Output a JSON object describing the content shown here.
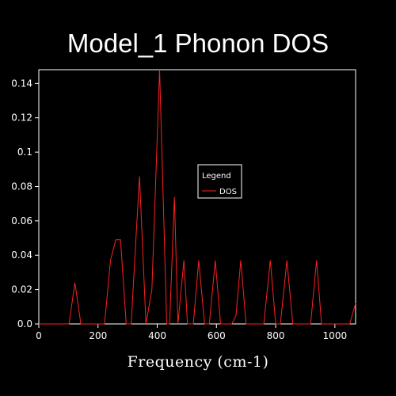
{
  "chart_data": {
    "type": "line",
    "title": "Model_1 Phonon DOS",
    "xlabel": "Frequency (cm-1)",
    "ylabel": "",
    "xlim": [
      0,
      1070
    ],
    "ylim": [
      0,
      0.148
    ],
    "x_ticks": [
      0,
      200,
      400,
      600,
      800,
      1000
    ],
    "x_tick_labels": [
      "0",
      "200",
      "400",
      "600",
      "800",
      "1000"
    ],
    "y_ticks": [
      0,
      0.02,
      0.04,
      0.06,
      0.08,
      0.1,
      0.12,
      0.14
    ],
    "y_tick_labels": [
      "0.0",
      "0.02",
      "0.04",
      "0.06",
      "0.08",
      "0.1",
      "0.12",
      "0.14"
    ],
    "grid": false,
    "legend": {
      "title": "Legend",
      "placement": "center-right"
    },
    "series": [
      {
        "name": "DOS",
        "color": "#ff2020",
        "points": [
          [
            0,
            0
          ],
          [
            102,
            0
          ],
          [
            122,
            0.024
          ],
          [
            142,
            0
          ],
          [
            222,
            0
          ],
          [
            242,
            0.037
          ],
          [
            260,
            0.049
          ],
          [
            276,
            0.049
          ],
          [
            295,
            0
          ],
          [
            312,
            0
          ],
          [
            340,
            0.086
          ],
          [
            362,
            0
          ],
          [
            382,
            0.02
          ],
          [
            408,
            0.148
          ],
          [
            432,
            0
          ],
          [
            442,
            0
          ],
          [
            458,
            0.074
          ],
          [
            470,
            0
          ],
          [
            490,
            0.037
          ],
          [
            502,
            0
          ],
          [
            522,
            0
          ],
          [
            540,
            0.037
          ],
          [
            560,
            0
          ],
          [
            576,
            0
          ],
          [
            596,
            0.037
          ],
          [
            614,
            0
          ],
          [
            652,
            0
          ],
          [
            666,
            0.005
          ],
          [
            682,
            0.037
          ],
          [
            700,
            0
          ],
          [
            760,
            0
          ],
          [
            782,
            0.037
          ],
          [
            800,
            0
          ],
          [
            816,
            0
          ],
          [
            838,
            0.037
          ],
          [
            858,
            0
          ],
          [
            918,
            0
          ],
          [
            938,
            0.037
          ],
          [
            955,
            0
          ],
          [
            1050,
            0
          ],
          [
            1070,
            0.012
          ]
        ]
      }
    ]
  }
}
